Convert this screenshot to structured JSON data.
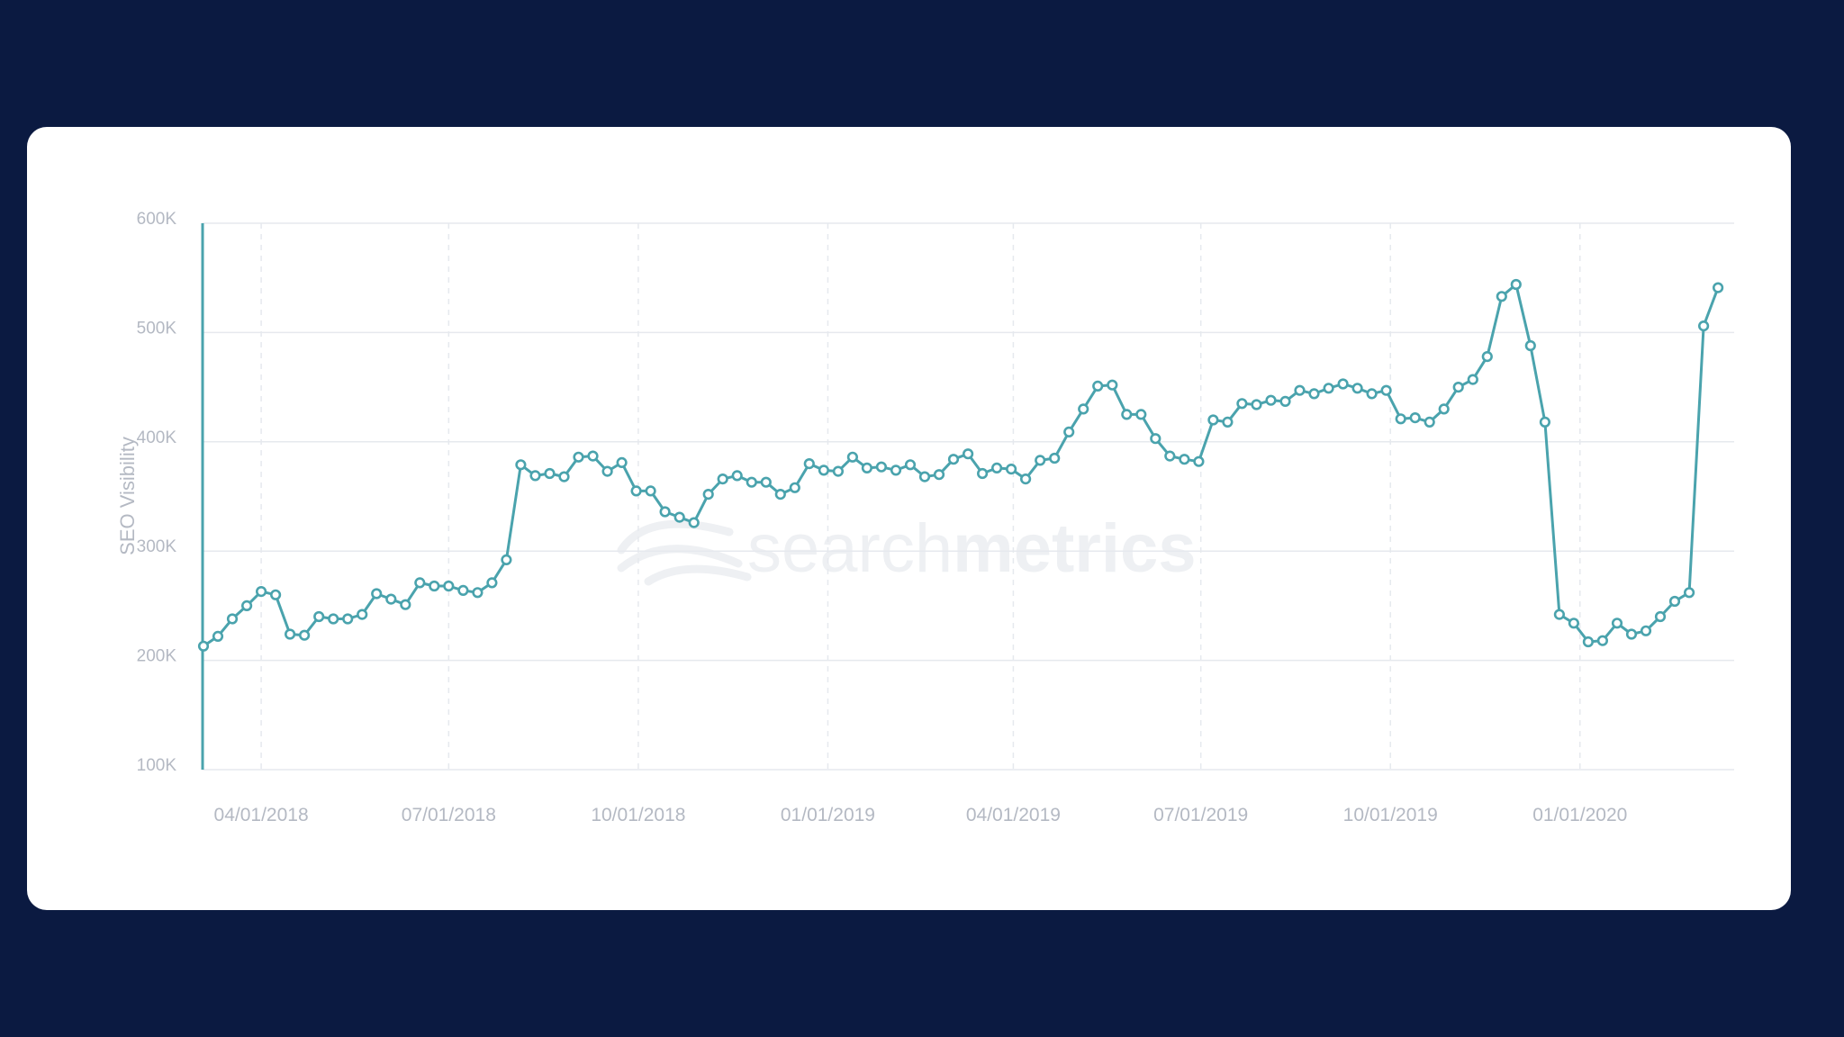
{
  "colors": {
    "background": "#0b1a41",
    "card": "#ffffff",
    "line": "#4aa3ad",
    "grid": "#e6e9ee",
    "text": "#b4b9c3"
  },
  "watermark": {
    "part1": "search",
    "part2": "metrics"
  },
  "chart_data": {
    "type": "line",
    "ylabel": "SEO Visibility",
    "xlabel": "",
    "yticks": [
      "100K",
      "200K",
      "300K",
      "400K",
      "500K",
      "600K"
    ],
    "ylim": [
      100000,
      600000
    ],
    "xticks": [
      "04/01/2018",
      "07/01/2018",
      "10/01/2018",
      "01/01/2019",
      "04/01/2019",
      "07/01/2019",
      "10/01/2019",
      "01/01/2020"
    ],
    "x_start": "2018-03-04",
    "x_interval": "weekly",
    "grid": true,
    "series": [
      {
        "values": [
          213000,
          222000,
          238000,
          250000,
          263000,
          260000,
          224000,
          223000,
          240000,
          238000,
          238000,
          242000,
          261000,
          256000,
          251000,
          271000,
          268000,
          268000,
          264000,
          262000,
          271000,
          292000,
          379000,
          369000,
          371000,
          368000,
          386000,
          387000,
          373000,
          381000,
          355000,
          355000,
          336000,
          331000,
          326000,
          352000,
          366000,
          369000,
          363000,
          363000,
          352000,
          358000,
          380000,
          374000,
          373000,
          386000,
          376000,
          377000,
          374000,
          379000,
          368000,
          370000,
          384000,
          389000,
          371000,
          376000,
          375000,
          366000,
          383000,
          385000,
          409000,
          430000,
          451000,
          452000,
          425000,
          425000,
          403000,
          387000,
          384000,
          382000,
          420000,
          418000,
          435000,
          434000,
          438000,
          437000,
          447000,
          444000,
          449000,
          453000,
          449000,
          444000,
          447000,
          421000,
          422000,
          418000,
          430000,
          450000,
          457000,
          478000,
          533000,
          544000,
          488000,
          418000,
          242000,
          234000,
          217000,
          218000,
          234000,
          224000,
          227000,
          240000,
          254000,
          262000,
          506000,
          541000
        ]
      }
    ]
  }
}
